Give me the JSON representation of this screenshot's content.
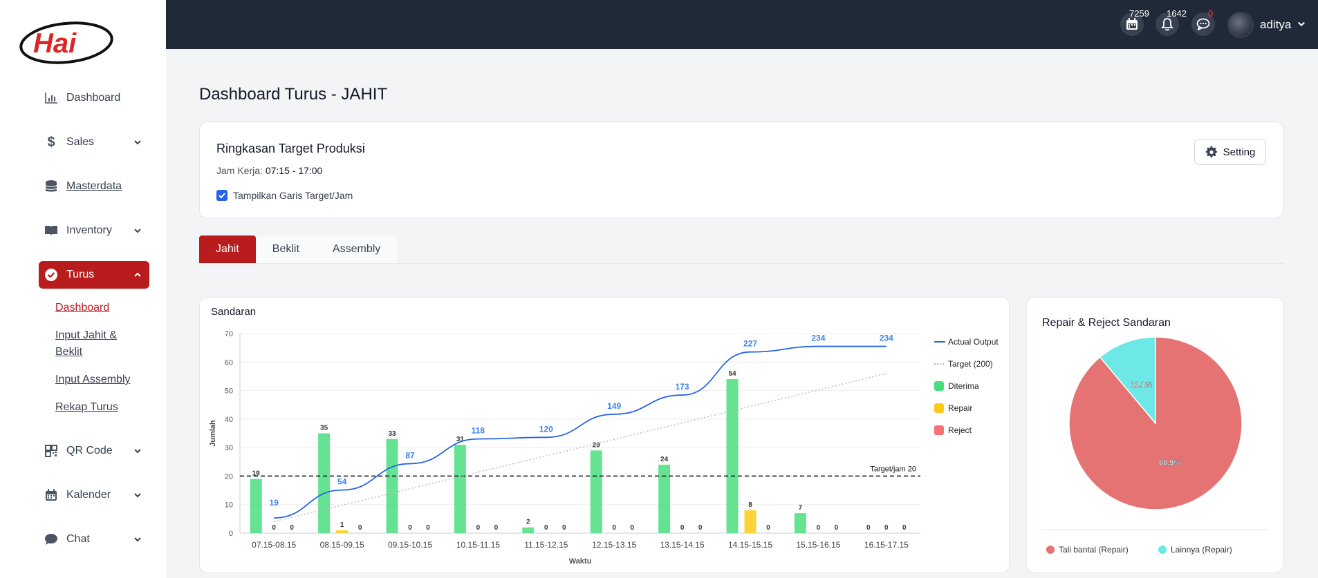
{
  "sidebar": {
    "logo_text": "Hai",
    "items": [
      {
        "label": "Dashboard",
        "icon": "bar-chart-icon"
      },
      {
        "label": "Sales",
        "icon": "dollar-icon"
      },
      {
        "label": "Masterdata",
        "icon": "database-icon"
      },
      {
        "label": "Inventory",
        "icon": "book-icon"
      },
      {
        "label": "Turus",
        "icon": "check-circle-icon"
      },
      {
        "label": "QR Code",
        "icon": "qr-code-icon"
      },
      {
        "label": "Kalender",
        "icon": "calendar-icon"
      },
      {
        "label": "Chat",
        "icon": "chat-bubble-icon"
      }
    ],
    "turus_sub": [
      "Dashboard",
      "Input Jahit & Beklit",
      "Input Assembly",
      "Rekap Turus"
    ]
  },
  "header": {
    "calendar_count": "7259",
    "notification_count": "1642",
    "chat_count": "0",
    "username": "aditya"
  },
  "page": {
    "title": "Dashboard Turus - JAHIT"
  },
  "summary": {
    "title": "Ringkasan Target Produksi",
    "hours_label": "Jam Kerja: ",
    "hours_value": "07:15 - 17:00",
    "checkbox_label": "Tampilkan Garis Target/Jam",
    "checkbox_checked": true,
    "setting_label": "Setting"
  },
  "tabs": [
    "Jahit",
    "Beklit",
    "Assembly"
  ],
  "colors": {
    "accent": "#b91c1c",
    "diterima": "#4ade80",
    "repair": "#facc15",
    "reject": "#f87171",
    "actual": "#2563eb",
    "pie_tali": "#e57373",
    "pie_lainnya": "#6ee7e7"
  },
  "chart_data": [
    {
      "type": "bar",
      "title": "Sandaran",
      "xlabel": "Waktu",
      "ylabel": "Jumlah",
      "ylim": [
        0,
        70
      ],
      "yticks": [
        0,
        10,
        20,
        30,
        40,
        50,
        60,
        70
      ],
      "categories": [
        "07.15-08.15",
        "08.15-09.15",
        "09.15-10.15",
        "10.15-11.15",
        "11.15-12.15",
        "12.15-13.15",
        "13.15-14.15",
        "14.15-15.15",
        "15.15-16.15",
        "16.15-17.15"
      ],
      "series": [
        {
          "name": "Diterima",
          "values": [
            19,
            35,
            33,
            31,
            2,
            29,
            24,
            54,
            7,
            0
          ]
        },
        {
          "name": "Repair",
          "values": [
            0,
            1,
            0,
            0,
            0,
            0,
            0,
            8,
            0,
            0
          ]
        },
        {
          "name": "Reject",
          "values": [
            0,
            0,
            0,
            0,
            0,
            0,
            0,
            0,
            0,
            0
          ]
        }
      ],
      "actual_output": {
        "name": "Actual Output",
        "values": [
          19,
          54,
          87,
          118,
          120,
          149,
          173,
          227,
          234,
          234
        ]
      },
      "target_line": {
        "name": "Target (200)"
      },
      "target_per_hour": {
        "label": "Target/jam 20",
        "value": 20
      },
      "legend": [
        "Actual Output",
        "Target (200)",
        "Diterima",
        "Repair",
        "Reject"
      ],
      "legend_position": "right"
    },
    {
      "type": "pie",
      "title": "Repair & Reject Sandaran",
      "labels": [
        "Tali bantal (Repair)",
        "Lainnya (Repair)"
      ],
      "values": [
        88.9,
        11.1
      ],
      "value_labels": [
        "88.9%",
        "11.1%"
      ],
      "legend_position": "bottom"
    }
  ]
}
